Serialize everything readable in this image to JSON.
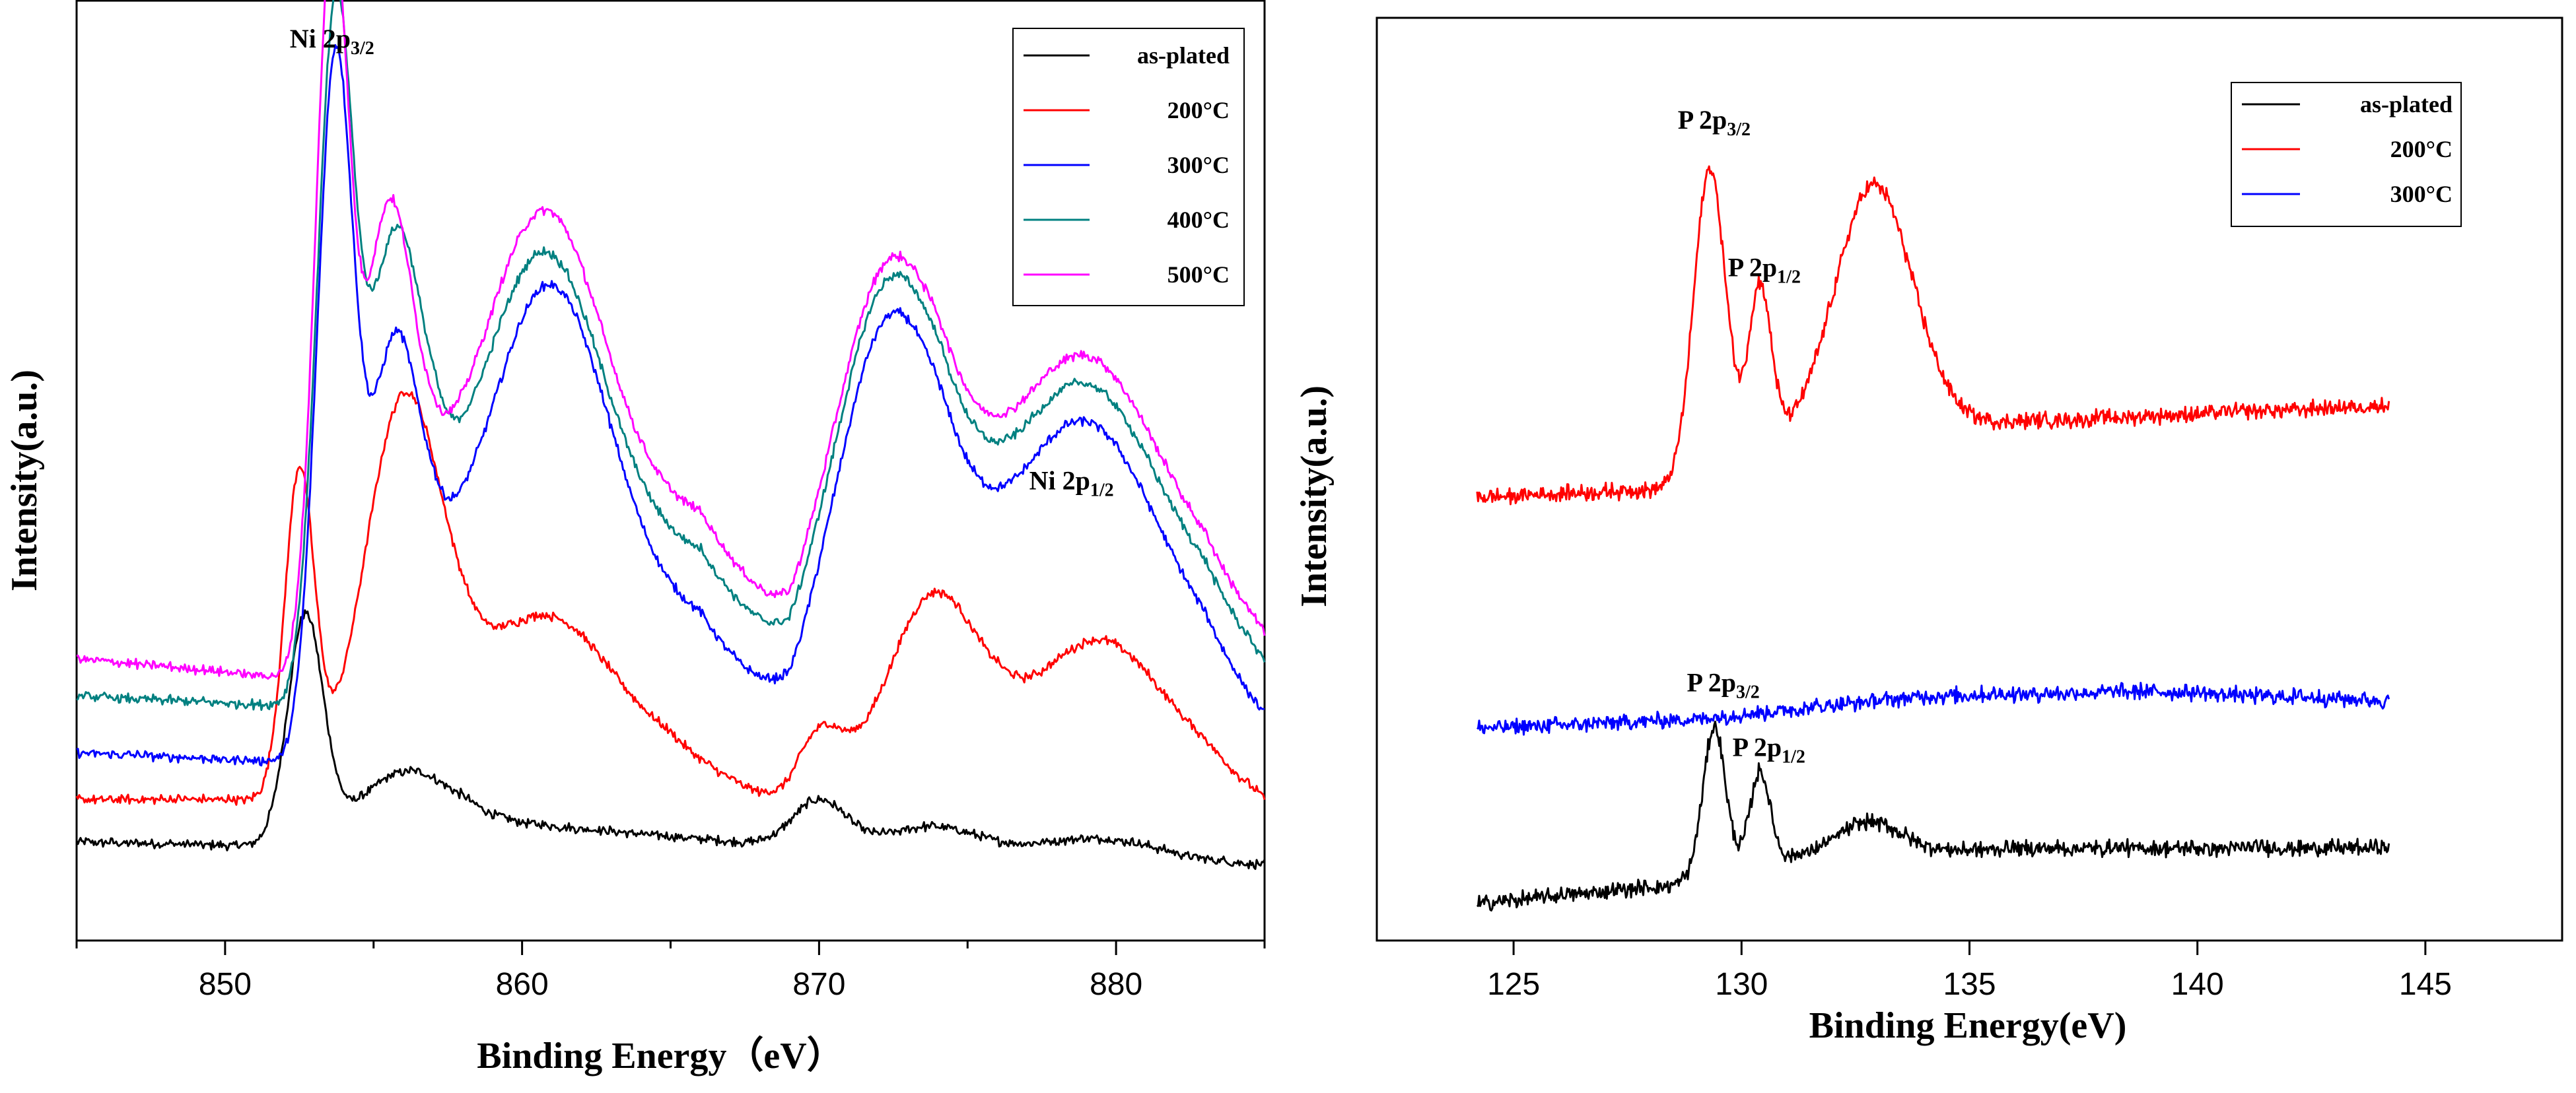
{
  "chart_data": [
    {
      "type": "line",
      "xlabel": "Binding Energy（eV）",
      "ylabel": "Intensity(a.u.)",
      "xlim": [
        845,
        885
      ],
      "xticks": [
        850,
        860,
        870,
        880
      ],
      "ylim": [
        0,
        1
      ],
      "yticks_shown": false,
      "legend": {
        "position": "top-right"
      },
      "annotations": [
        {
          "main": "Ni 2p",
          "sub": "3/2",
          "x": 853.6,
          "y": 0.95
        },
        {
          "main": "Ni 2p",
          "sub": "1/2",
          "x": 878.5,
          "y": 0.48
        }
      ],
      "series": [
        {
          "name": "as-plated",
          "color": "#000000",
          "offset": 0.08,
          "peaks": [
            [
              852.7,
              0.24,
              0.6
            ],
            [
              856.0,
              0.06,
              1.5
            ],
            [
              870.0,
              0.05,
              0.9
            ],
            [
              873.8,
              0.025,
              1.5
            ],
            [
              879.5,
              0.02,
              2.0
            ]
          ],
          "bg": [
            [
              845,
              0.025
            ],
            [
              852,
              0.02
            ],
            [
              858,
              0.05
            ],
            [
              869,
              0.02
            ],
            [
              875,
              0.015
            ],
            [
              885,
              0.0
            ]
          ]
        },
        {
          "name": "200°C",
          "color": "#ff0000",
          "offset": 0.13,
          "peaks": [
            [
              852.5,
              0.34,
              0.5
            ],
            [
              856.0,
              0.38,
              1.3
            ],
            [
              860.8,
              0.14,
              2.2
            ],
            [
              870.0,
              0.07,
              0.8
            ],
            [
              873.8,
              0.18,
              1.5
            ],
            [
              879.5,
              0.12,
              2.0
            ]
          ],
          "bg": [
            [
              845,
              0.02
            ],
            [
              852,
              0.02
            ],
            [
              858,
              0.08
            ],
            [
              865,
              0.07
            ],
            [
              869,
              0.01
            ],
            [
              876,
              0.08
            ],
            [
              883,
              0.06
            ],
            [
              885,
              0.02
            ]
          ]
        },
        {
          "name": "300°C",
          "color": "#0000ff",
          "offset": 0.19,
          "peaks": [
            [
              853.7,
              0.68,
              0.6
            ],
            [
              855.7,
              0.3,
              0.8
            ],
            [
              861.0,
              0.33,
              1.9
            ],
            [
              872.3,
              0.36,
              1.8
            ],
            [
              879.0,
              0.24,
              2.4
            ]
          ],
          "bg": [
            [
              845,
              0.01
            ],
            [
              852,
              0.0
            ],
            [
              857,
              0.2
            ],
            [
              866,
              0.15
            ],
            [
              869,
              0.03
            ],
            [
              874,
              0.15
            ],
            [
              883,
              0.1
            ],
            [
              885,
              0.04
            ]
          ]
        },
        {
          "name": "400°C",
          "color": "#008080",
          "offset": 0.25,
          "peaks": [
            [
              853.7,
              0.66,
              0.6
            ],
            [
              855.7,
              0.35,
              0.9
            ],
            [
              860.8,
              0.3,
              1.9
            ],
            [
              872.3,
              0.34,
              1.8
            ],
            [
              879.0,
              0.22,
              2.4
            ]
          ],
          "bg": [
            [
              845,
              0.01
            ],
            [
              852,
              0.0
            ],
            [
              857,
              0.2
            ],
            [
              866,
              0.16
            ],
            [
              869,
              0.03
            ],
            [
              874,
              0.15
            ],
            [
              883,
              0.1
            ],
            [
              885,
              0.04
            ]
          ]
        },
        {
          "name": "500°C",
          "color": "#ff00ff",
          "offset": 0.28,
          "peaks": [
            [
              853.6,
              0.72,
              0.55
            ],
            [
              855.5,
              0.36,
              0.8
            ],
            [
              860.8,
              0.31,
              1.9
            ],
            [
              872.3,
              0.33,
              1.8
            ],
            [
              879.0,
              0.22,
              2.4
            ]
          ],
          "bg": [
            [
              845,
              0.02
            ],
            [
              852,
              0.0
            ],
            [
              857,
              0.2
            ],
            [
              866,
              0.17
            ],
            [
              869,
              0.03
            ],
            [
              874,
              0.15
            ],
            [
              883,
              0.1
            ],
            [
              885,
              0.04
            ]
          ]
        }
      ]
    },
    {
      "type": "line",
      "xlabel": "Binding Energy(eV)",
      "ylabel": "Intensity(a.u.)",
      "xlim": [
        122,
        148
      ],
      "xticks": [
        125,
        130,
        135,
        140,
        145
      ],
      "ylim": [
        0,
        1
      ],
      "yticks_shown": false,
      "legend": {
        "position": "top-right"
      },
      "annotations": [
        {
          "main": "P 2p",
          "sub": "3/2",
          "x": 129.4,
          "y": 0.88
        },
        {
          "main": "P 2p",
          "sub": "1/2",
          "x": 130.5,
          "y": 0.72
        },
        {
          "main": "P 2p",
          "sub": "3/2",
          "x": 129.6,
          "y": 0.27
        },
        {
          "main": "P 2p",
          "sub": "1/2",
          "x": 130.6,
          "y": 0.2
        }
      ],
      "series": [
        {
          "name": "as-plated",
          "color": "#000000",
          "offset": 0.04,
          "xrange": [
            124.2,
            144.2
          ],
          "peaks": [
            [
              129.4,
              0.16,
              0.25
            ],
            [
              130.4,
              0.1,
              0.22
            ],
            [
              132.8,
              0.035,
              0.7
            ]
          ],
          "bg": [
            [
              124.2,
              0.0
            ],
            [
              128.5,
              0.02
            ],
            [
              131,
              0.05
            ],
            [
              136,
              0.06
            ],
            [
              144.2,
              0.06
            ]
          ]
        },
        {
          "name": "200°C",
          "color": "#ff0000",
          "offset": 0.48,
          "xrange": [
            124.2,
            144.2
          ],
          "peaks": [
            [
              129.3,
              0.33,
              0.35
            ],
            [
              130.4,
              0.18,
              0.25
            ],
            [
              132.9,
              0.27,
              0.85
            ]
          ],
          "bg": [
            [
              124.2,
              0.0
            ],
            [
              128.5,
              0.01
            ],
            [
              131,
              0.06
            ],
            [
              135,
              0.08
            ],
            [
              144.2,
              0.1
            ]
          ]
        },
        {
          "name": "300°C",
          "color": "#0000ff",
          "offset": 0.23,
          "xrange": [
            124.2,
            144.2
          ],
          "peaks": [],
          "bg": [
            [
              124.2,
              0.0
            ],
            [
              129,
              0.01
            ],
            [
              134,
              0.035
            ],
            [
              139,
              0.04
            ],
            [
              144.2,
              0.03
            ]
          ]
        }
      ]
    }
  ]
}
